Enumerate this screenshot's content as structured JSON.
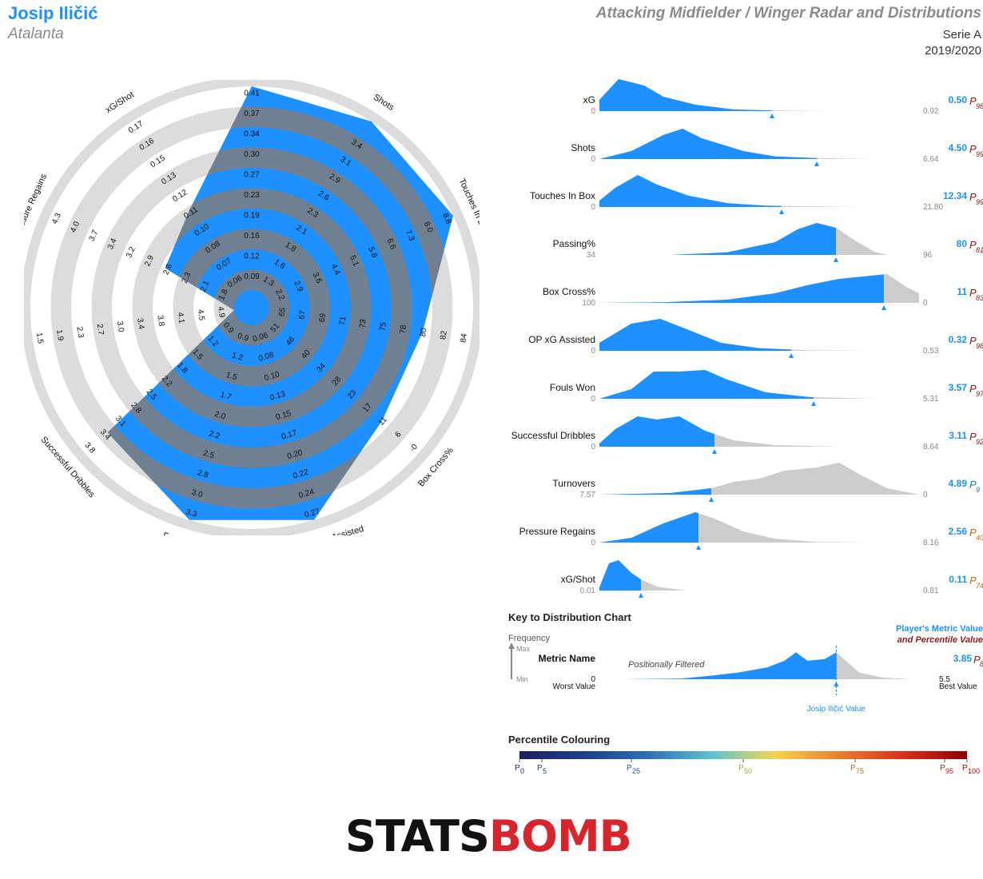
{
  "header": {
    "player": "Josip Iličić",
    "team": "Atalanta",
    "title": "Attacking Midfielder / Winger Radar and Distributions",
    "competition": "Serie A",
    "season": "2019/2020"
  },
  "colors": {
    "blue": "#1e90ff",
    "grey_ring": "#dcdcdc",
    "slate": "#708090",
    "dist_grey": "#cccccc",
    "percentile_red": "#8b1a1a",
    "percentile_orange": "#d2691e",
    "percentile_blue": "#1e73b0"
  },
  "chart_data": [
    {
      "type": "radar",
      "axes": [
        {
          "label": "xG",
          "ticks": [
            "0.09",
            "0.12",
            "0.16",
            "0.19",
            "0.23",
            "0.27",
            "0.30",
            "0.34",
            "0.37",
            "0.41"
          ],
          "value": 0.5
        },
        {
          "label": "Shots",
          "ticks": [
            "1.3",
            "1.6",
            "1.8",
            "2.1",
            "2.3",
            "2.6",
            "2.9",
            "3.1",
            "3.4"
          ],
          "value": 4.5
        },
        {
          "label": "Touches In Box",
          "ticks": [
            "2.2",
            "2.9",
            "3.6",
            "4.4",
            "5.1",
            "5.8",
            "6.6",
            "7.3",
            "8.0",
            "8.8"
          ],
          "value": 12.34
        },
        {
          "label": "Passing%",
          "ticks": [
            "65",
            "67",
            "69",
            "71",
            "73",
            "75",
            "78",
            "80",
            "82",
            "84"
          ],
          "value": 80
        },
        {
          "label": "Box Cross%",
          "ticks": [
            "51",
            "46",
            "40",
            "34",
            "28",
            "23",
            "17",
            "11",
            "6",
            "-0"
          ],
          "value": 11
        },
        {
          "label": "Open Play xG Assisted",
          "ticks": [
            "0.06",
            "0.08",
            "0.10",
            "0.13",
            "0.15",
            "0.17",
            "0.20",
            "0.22",
            "0.24",
            "0.27"
          ],
          "value": 0.32
        },
        {
          "label": "Fouls Won",
          "ticks": [
            "0.9",
            "1.2",
            "1.5",
            "1.7",
            "2.0",
            "2.2",
            "2.5",
            "2.8",
            "3.0",
            "3.3"
          ],
          "value": 3.57
        },
        {
          "label": "Successful Dribbles",
          "ticks": [
            "0.9",
            "1.2",
            "1.5",
            "1.8",
            "2.2",
            "2.5",
            "2.8",
            "3.1",
            "3.4",
            "3.8"
          ],
          "value": 3.11
        },
        {
          "label": "Turnovers",
          "ticks": [
            "4.9",
            "4.5",
            "4.1",
            "3.8",
            "3.4",
            "3.0",
            "2.7",
            "2.3",
            "1.9",
            "1.5"
          ],
          "value": 4.89
        },
        {
          "label": "Pressure Regains",
          "ticks": [
            "1.8",
            "2.1",
            "2.3",
            "2.6",
            "2.9",
            "3.2",
            "3.4",
            "3.7",
            "4.0",
            "4.3"
          ],
          "value": 2.56
        },
        {
          "label": "xG/Shot",
          "ticks": [
            "0.06",
            "0.07",
            "0.08",
            "0.10",
            "0.11",
            "0.12",
            "0.13",
            "0.15",
            "0.16",
            "0.17"
          ],
          "value": 0.11
        }
      ],
      "player_ring_fraction": [
        1.0,
        1.0,
        1.0,
        0.76,
        0.76,
        1.0,
        1.0,
        0.85,
        0.0,
        0.38,
        0.48
      ]
    },
    {
      "type": "distribution",
      "metrics": [
        {
          "label": "xG",
          "min": "0",
          "max": "0.92",
          "value": "0.50",
          "percentile": "98",
          "pcolor": "#8b1a1a",
          "value_frac": 0.54,
          "curve": [
            [
              0,
              0.35
            ],
            [
              0.06,
              1
            ],
            [
              0.14,
              0.8
            ],
            [
              0.2,
              0.45
            ],
            [
              0.3,
              0.2
            ],
            [
              0.42,
              0.05
            ],
            [
              0.55,
              0.02
            ],
            [
              0.72,
              0
            ]
          ]
        },
        {
          "label": "Shots",
          "min": "0",
          "max": "6.64",
          "value": "4.50",
          "percentile": "99",
          "pcolor": "#8b1a1a",
          "value_frac": 0.68,
          "curve": [
            [
              0,
              0
            ],
            [
              0.1,
              0.25
            ],
            [
              0.2,
              0.75
            ],
            [
              0.26,
              0.95
            ],
            [
              0.32,
              0.65
            ],
            [
              0.45,
              0.25
            ],
            [
              0.55,
              0.08
            ],
            [
              0.68,
              0.03
            ],
            [
              0.85,
              0
            ]
          ]
        },
        {
          "label": "Touches In Box",
          "min": "0",
          "max": "21.80",
          "value": "12.34",
          "percentile": "99",
          "pcolor": "#8b1a1a",
          "value_frac": 0.57,
          "curve": [
            [
              0,
              0.2
            ],
            [
              0.05,
              0.6
            ],
            [
              0.12,
              1
            ],
            [
              0.18,
              0.7
            ],
            [
              0.28,
              0.35
            ],
            [
              0.4,
              0.12
            ],
            [
              0.52,
              0.04
            ],
            [
              0.65,
              0.02
            ],
            [
              0.82,
              0
            ]
          ]
        },
        {
          "label": "Passing%",
          "min": "34",
          "value_frac_note": "",
          "max": "96",
          "value": "80",
          "percentile": "81",
          "pcolor": "#8b1a1a",
          "value_frac": 0.74,
          "curve": [
            [
              0.22,
              0
            ],
            [
              0.4,
              0.08
            ],
            [
              0.55,
              0.4
            ],
            [
              0.62,
              0.8
            ],
            [
              0.68,
              1
            ],
            [
              0.74,
              0.85
            ],
            [
              0.8,
              0.45
            ],
            [
              0.86,
              0.1
            ],
            [
              0.9,
              0
            ]
          ]
        },
        {
          "label": "Box Cross%",
          "min": "100",
          "max": "0",
          "value": "11",
          "percentile": "83",
          "pcolor": "#8b1a1a",
          "value_frac": 0.89,
          "curve": [
            [
              0,
              0
            ],
            [
              0.2,
              0.02
            ],
            [
              0.4,
              0.1
            ],
            [
              0.55,
              0.3
            ],
            [
              0.65,
              0.55
            ],
            [
              0.75,
              0.75
            ],
            [
              0.85,
              0.85
            ],
            [
              0.9,
              0.9
            ],
            [
              0.96,
              0.5
            ],
            [
              1,
              0.3
            ]
          ]
        },
        {
          "label": "OP xG Assisted",
          "min": "0",
          "max": "0.53",
          "value": "0.32",
          "percentile": "98",
          "pcolor": "#8b1a1a",
          "value_frac": 0.6,
          "curve": [
            [
              0,
              0.25
            ],
            [
              0.1,
              0.85
            ],
            [
              0.19,
              1
            ],
            [
              0.28,
              0.65
            ],
            [
              0.38,
              0.25
            ],
            [
              0.5,
              0.08
            ],
            [
              0.65,
              0.02
            ],
            [
              0.85,
              0
            ]
          ]
        },
        {
          "label": "Fouls Won",
          "min": "0",
          "max": "5.31",
          "value": "3.57",
          "percentile": "97",
          "pcolor": "#8b1a1a",
          "value_frac": 0.67,
          "curve": [
            [
              0,
              0
            ],
            [
              0.1,
              0.3
            ],
            [
              0.17,
              0.85
            ],
            [
              0.25,
              0.85
            ],
            [
              0.33,
              0.9
            ],
            [
              0.4,
              0.6
            ],
            [
              0.52,
              0.2
            ],
            [
              0.66,
              0.05
            ],
            [
              0.87,
              0
            ]
          ]
        },
        {
          "label": "Successful Dribbles",
          "min": "0",
          "max": "8.64",
          "value": "3.11",
          "percentile": "92",
          "pcolor": "#8b1a1a",
          "value_frac": 0.36,
          "curve": [
            [
              0,
              0.1
            ],
            [
              0.05,
              0.55
            ],
            [
              0.12,
              0.95
            ],
            [
              0.18,
              0.85
            ],
            [
              0.25,
              0.95
            ],
            [
              0.33,
              0.5
            ],
            [
              0.42,
              0.2
            ],
            [
              0.55,
              0.05
            ],
            [
              0.75,
              0
            ]
          ]
        },
        {
          "label": "Turnovers",
          "min": "7.57",
          "max": "0",
          "value": "4.89",
          "percentile": "9",
          "pcolor": "#1e73b0",
          "value_frac": 0.35,
          "curve": [
            [
              0,
              0
            ],
            [
              0.22,
              0.05
            ],
            [
              0.35,
              0.2
            ],
            [
              0.42,
              0.4
            ],
            [
              0.5,
              0.5
            ],
            [
              0.58,
              0.75
            ],
            [
              0.68,
              0.85
            ],
            [
              0.75,
              1
            ],
            [
              0.82,
              0.6
            ],
            [
              0.9,
              0.2
            ],
            [
              1,
              0
            ]
          ]
        },
        {
          "label": "Pressure Regains",
          "min": "0",
          "max": "8.16",
          "value": "2.56",
          "percentile": "40",
          "pcolor": "#d2691e",
          "value_frac": 0.31,
          "curve": [
            [
              0,
              0
            ],
            [
              0.1,
              0.15
            ],
            [
              0.2,
              0.6
            ],
            [
              0.3,
              0.95
            ],
            [
              0.36,
              0.75
            ],
            [
              0.45,
              0.35
            ],
            [
              0.55,
              0.12
            ],
            [
              0.68,
              0.02
            ],
            [
              0.85,
              0
            ]
          ]
        },
        {
          "label": "xG/Shot",
          "min": "0.01",
          "max": "0.81",
          "value": "0.11",
          "percentile": "74",
          "pcolor": "#d2691e",
          "value_frac": 0.13,
          "curve": [
            [
              0,
              0.1
            ],
            [
              0.03,
              0.85
            ],
            [
              0.06,
              0.95
            ],
            [
              0.1,
              0.55
            ],
            [
              0.13,
              0.35
            ],
            [
              0.18,
              0.12
            ],
            [
              0.27,
              0
            ]
          ]
        }
      ]
    }
  ],
  "key": {
    "title": "Key to Distribution Chart",
    "frequency": "Frequency",
    "max": "Max",
    "min": "Min",
    "metric_name": "Metric Name",
    "filtered": "Positionally Filtered",
    "worst_value": "Worst Value",
    "best_value": "Best Value",
    "zero": "0",
    "best": "5.5",
    "player_metric": "Player's Metric Value",
    "and_percentile": "and Percentile Value",
    "value": "3.85",
    "percentile": "82",
    "player_value_label": "Josip Iličić Value",
    "value_frac": 0.74,
    "curve": [
      [
        0,
        0
      ],
      [
        0.2,
        0.02
      ],
      [
        0.3,
        0.1
      ],
      [
        0.4,
        0.2
      ],
      [
        0.5,
        0.35
      ],
      [
        0.56,
        0.55
      ],
      [
        0.6,
        0.8
      ],
      [
        0.64,
        0.55
      ],
      [
        0.7,
        0.6
      ],
      [
        0.74,
        0.8
      ],
      [
        0.78,
        0.5
      ],
      [
        0.82,
        0.2
      ],
      [
        0.9,
        0.05
      ],
      [
        1,
        0
      ]
    ]
  },
  "percentile_scale": {
    "title": "Percentile Colouring",
    "labels": [
      "0",
      "5",
      "25",
      "50",
      "75",
      "95",
      "100"
    ],
    "stops": [
      0,
      5,
      25,
      50,
      75,
      95,
      100
    ],
    "colors": [
      "#1b1f5e",
      "#1e3e8c",
      "#2e6fb5",
      "#5cc3cf",
      "#f5d44f",
      "#e8802e",
      "#d8301c",
      "#8b0000"
    ]
  },
  "logo": {
    "part1": "STATS",
    "part2": "BOMB"
  }
}
